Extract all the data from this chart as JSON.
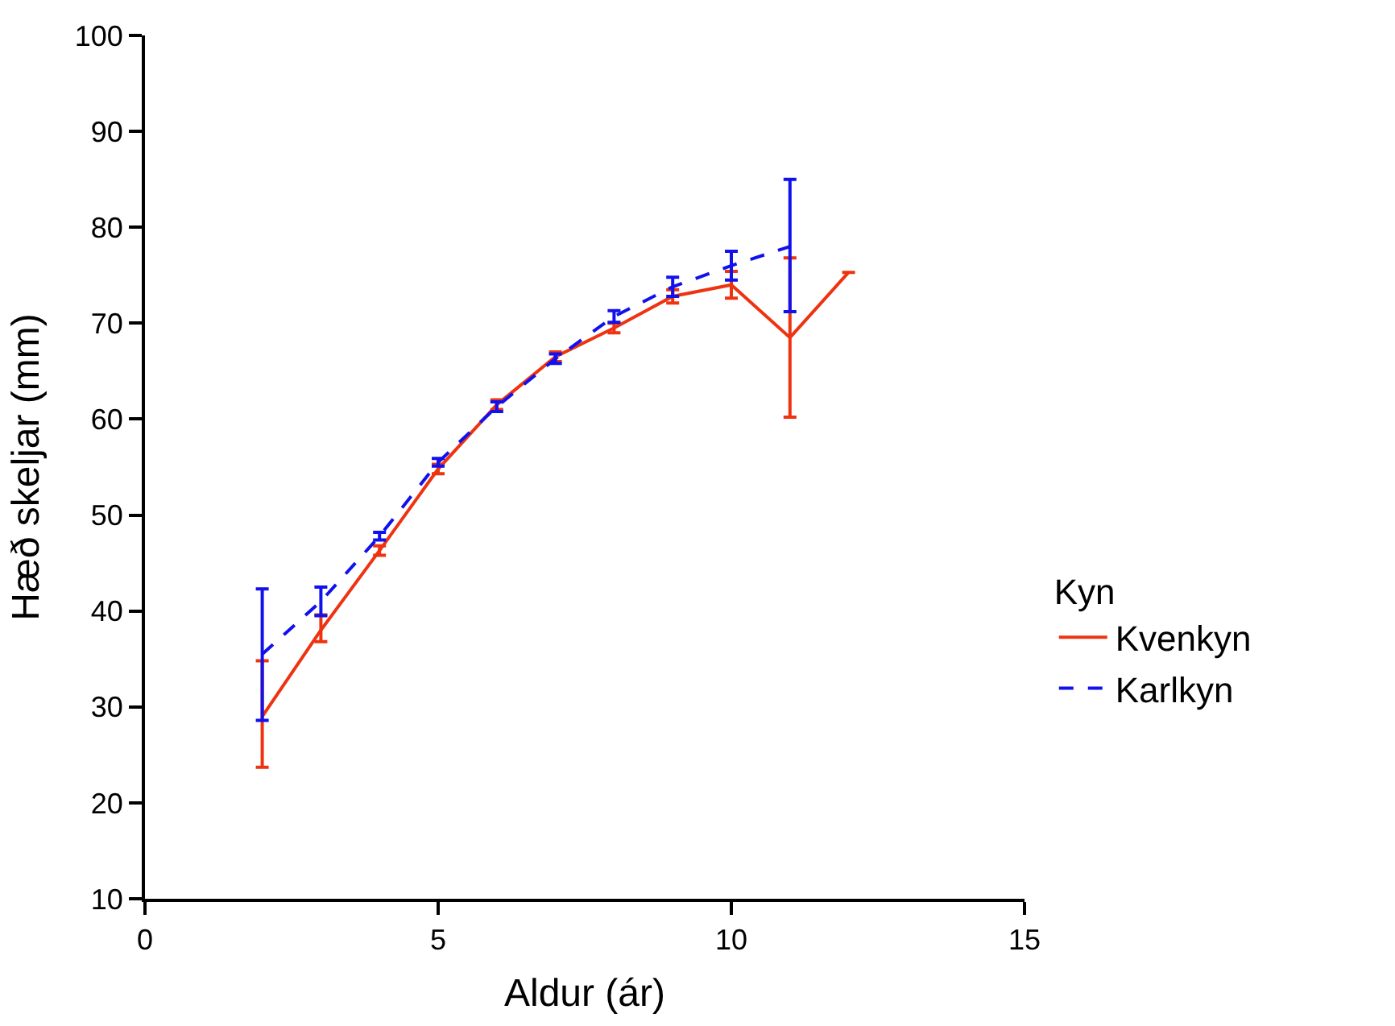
{
  "chart_data": {
    "type": "line",
    "xlabel": "Aldur (ár)",
    "ylabel": "Hæð skeljar (mm)",
    "legend_title": "Kyn",
    "xlim": [
      0,
      15
    ],
    "xticks": [
      0,
      5,
      10,
      15
    ],
    "ylim": [
      10,
      100
    ],
    "yticks": [
      10,
      20,
      30,
      40,
      50,
      60,
      70,
      80,
      90,
      100
    ],
    "legend": "right",
    "series": [
      {
        "name": "Kvenkyn",
        "color": "#ee3311",
        "line_style": "solid",
        "x": [
          2,
          3,
          4,
          5,
          6,
          7,
          8,
          9,
          10,
          11,
          12
        ],
        "values": [
          29,
          38,
          46.3,
          54.8,
          61.5,
          66.5,
          69.5,
          72.8,
          74,
          68.5,
          75.3
        ],
        "errors": [
          [
            23.7,
            34.8
          ],
          [
            36.8,
            39.6
          ],
          [
            45.8,
            46.8
          ],
          [
            54.3,
            55.3
          ],
          [
            61,
            62
          ],
          [
            66,
            67
          ],
          [
            69,
            70
          ],
          [
            72.1,
            73.5
          ],
          [
            72.6,
            75.4
          ],
          [
            60.2,
            76.8
          ],
          null
        ]
      },
      {
        "name": "Karlkyn",
        "color": "#1111ee",
        "line_style": "dashed",
        "x": [
          2,
          3,
          4,
          5,
          6,
          7,
          8,
          9,
          10,
          11
        ],
        "values": [
          35.5,
          41,
          47.8,
          55.5,
          61.3,
          66.3,
          70.7,
          73.8,
          76,
          78
        ],
        "errors": [
          [
            28.6,
            42.3
          ],
          [
            39.5,
            42.5
          ],
          [
            47.4,
            48.2
          ],
          [
            55.1,
            55.9
          ],
          [
            60.8,
            61.8
          ],
          [
            65.8,
            66.8
          ],
          [
            70.1,
            71.3
          ],
          [
            72.8,
            74.8
          ],
          [
            74.5,
            77.5
          ],
          [
            71.2,
            85
          ]
        ]
      }
    ]
  }
}
